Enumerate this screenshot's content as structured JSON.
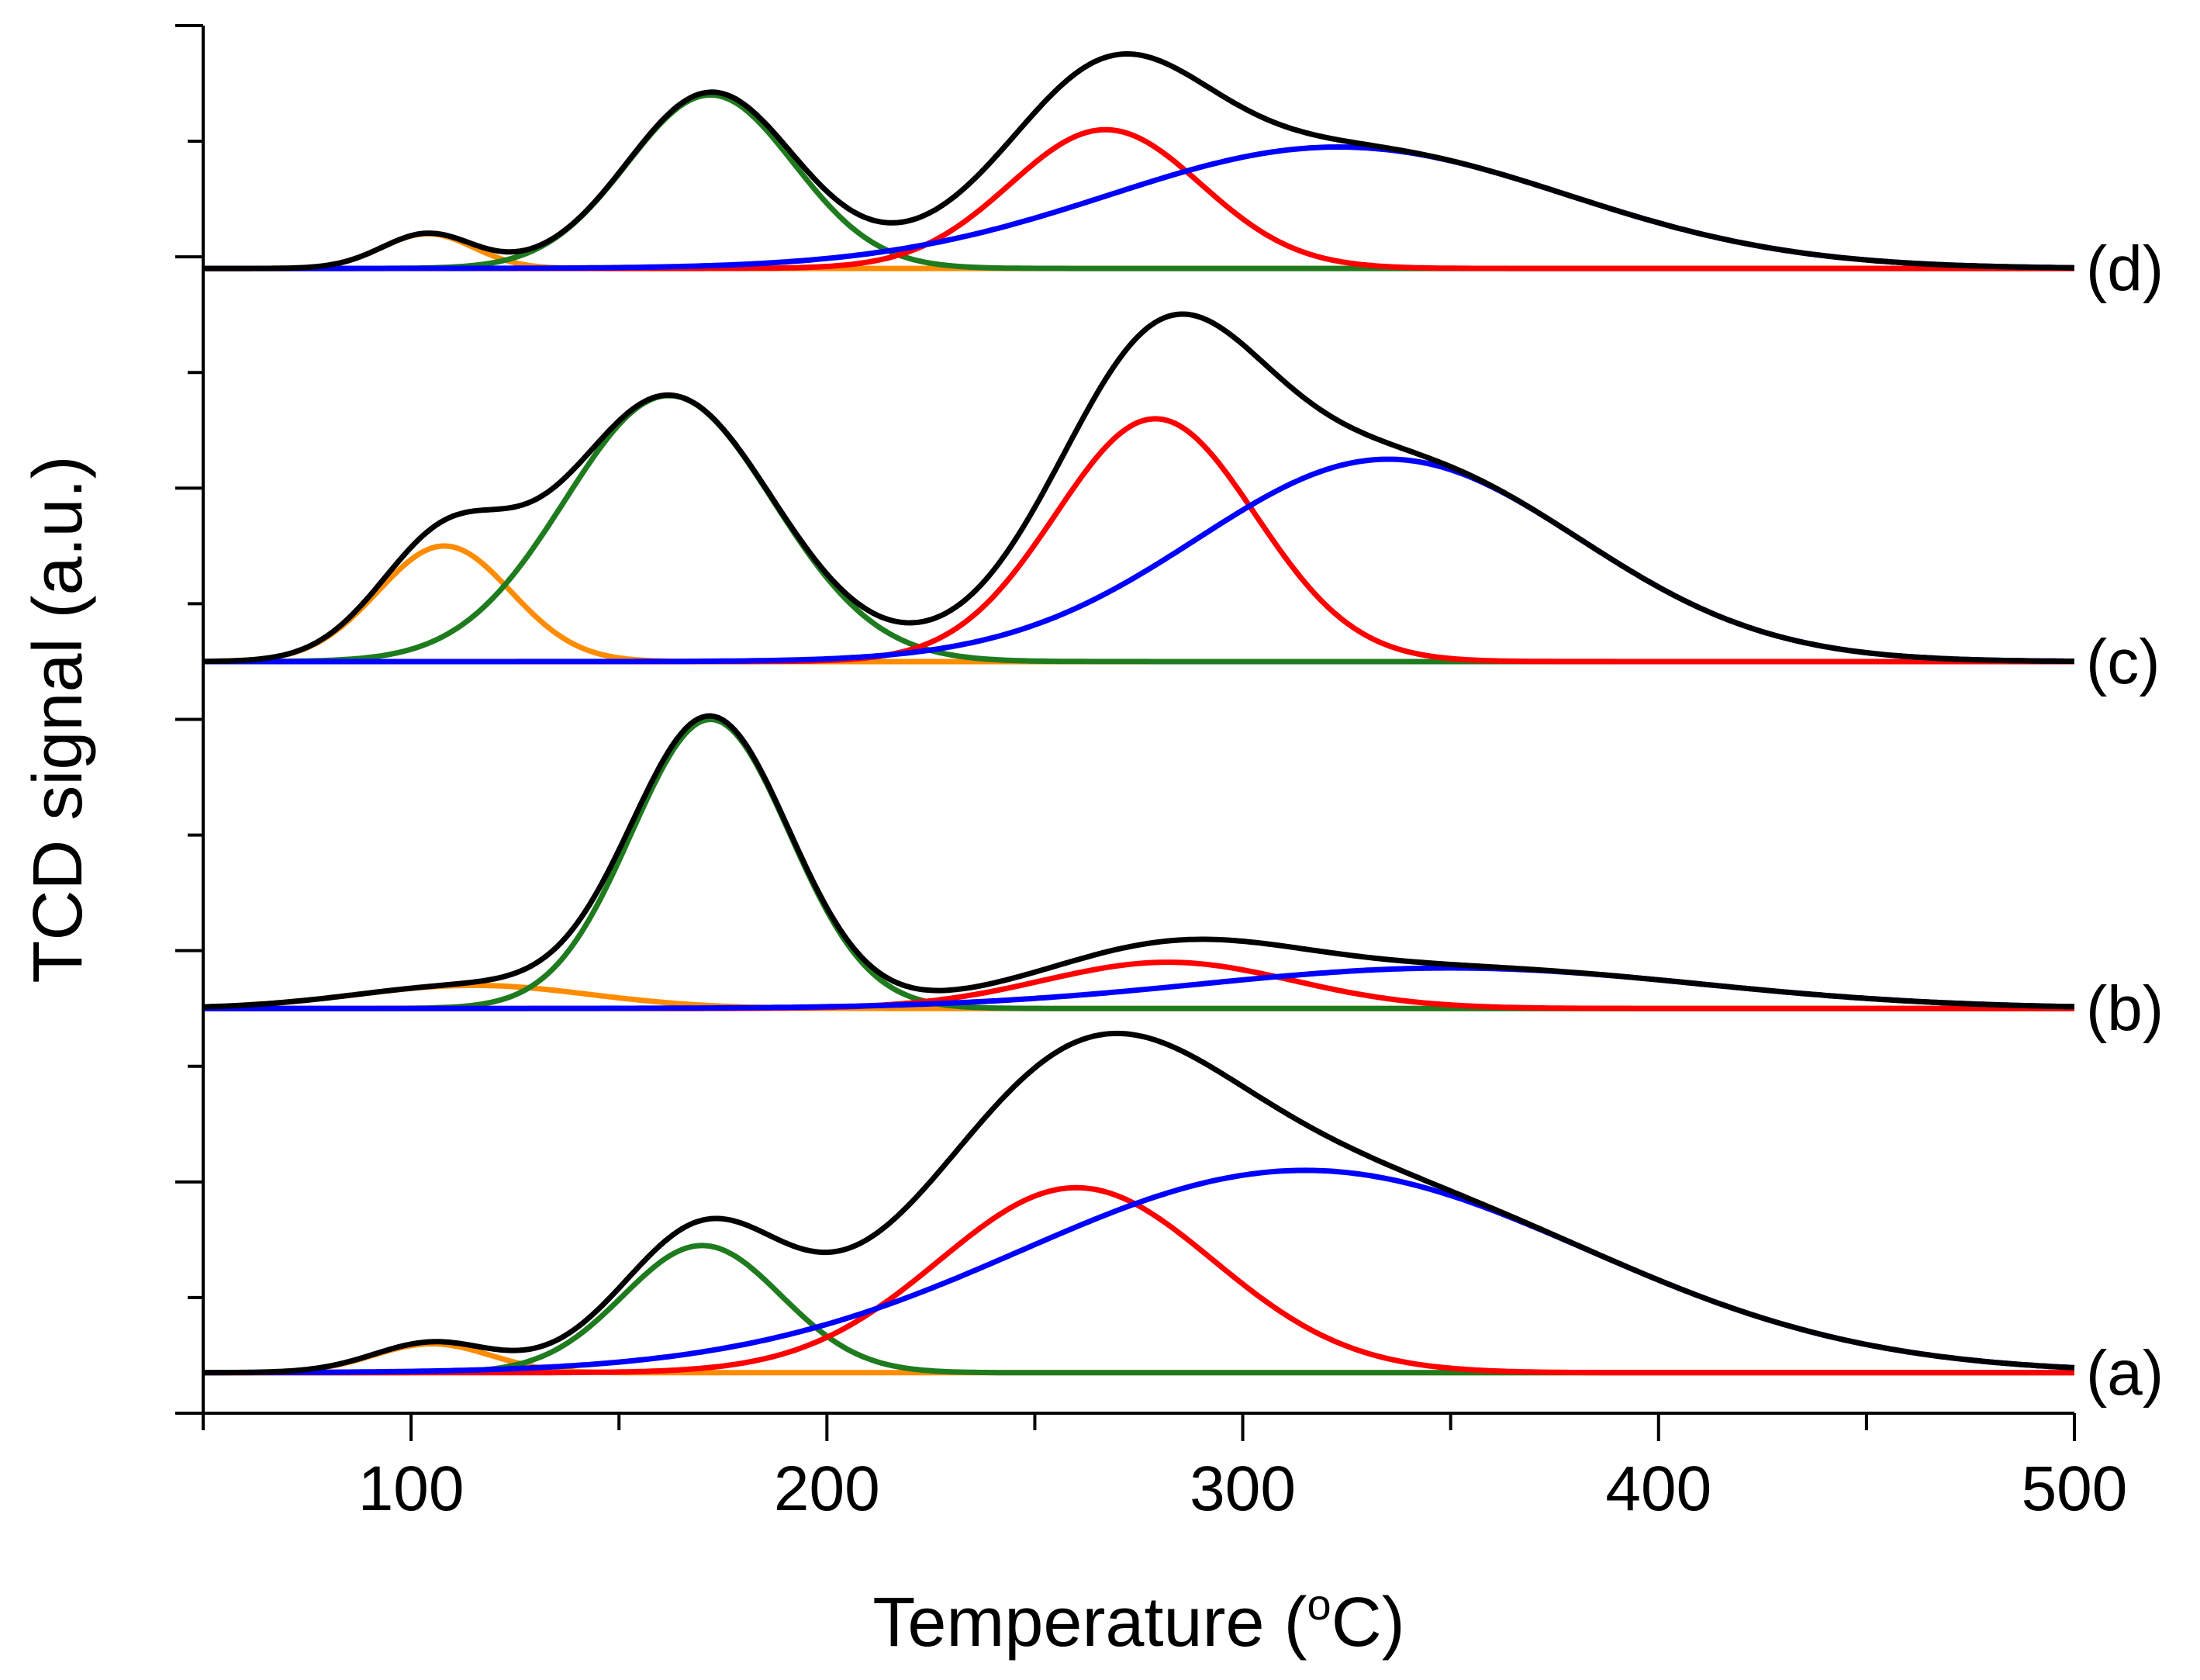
{
  "chart_data": {
    "type": "line",
    "title": "",
    "xlabel": "Temperature (",
    "xlabel_sup": "o",
    "xlabel_unit": "C)",
    "ylabel": "TCD signal (a.u.)",
    "xlim": [
      50,
      500
    ],
    "ylim": [
      0,
      12
    ],
    "xticks": [
      100,
      200,
      300,
      400,
      500
    ],
    "grid": false,
    "legend": "none",
    "colors": {
      "total": "#000000",
      "peak1": "#ff8c00",
      "peak2": "#1e7b1e",
      "peak3": "#ff0000",
      "peak4": "#0000ff"
    },
    "curves": [
      {
        "label": "(a)",
        "baseline": 0.35,
        "components": [
          {
            "name": "peak1",
            "center": 105,
            "height": 0.25,
            "width": 14
          },
          {
            "name": "peak2",
            "center": 170,
            "height": 1.1,
            "width": 19
          },
          {
            "name": "peak3",
            "center": 260,
            "height": 1.6,
            "width": 33
          },
          {
            "name": "peak4",
            "center": 315,
            "height": 1.75,
            "width": 68
          }
        ],
        "total_peaks": [
          {
            "x": 170,
            "y": 1.7
          },
          {
            "x": 265,
            "y": 2.8
          },
          {
            "x": 320,
            "y": 2.2
          }
        ]
      },
      {
        "label": "(b)",
        "baseline": 3.5,
        "components": [
          {
            "name": "peak1",
            "center": 115,
            "height": 0.2,
            "width": 28
          },
          {
            "name": "peak2",
            "center": 172,
            "height": 2.5,
            "width": 19
          },
          {
            "name": "peak3",
            "center": 282,
            "height": 0.4,
            "width": 30
          },
          {
            "name": "peak4",
            "center": 350,
            "height": 0.35,
            "width": 60
          }
        ],
        "total_peaks": [
          {
            "x": 173,
            "y": 6.05
          },
          {
            "x": 280,
            "y": 4.2
          }
        ]
      },
      {
        "label": "(c)",
        "baseline": 6.5,
        "components": [
          {
            "name": "peak1",
            "center": 108,
            "height": 1.0,
            "width": 16
          },
          {
            "name": "peak2",
            "center": 162,
            "height": 2.3,
            "width": 25
          },
          {
            "name": "peak3",
            "center": 279,
            "height": 2.1,
            "width": 24
          },
          {
            "name": "peak4",
            "center": 335,
            "height": 1.75,
            "width": 46
          }
        ],
        "total_peaks": [
          {
            "x": 160,
            "y": 8.85
          },
          {
            "x": 278,
            "y": 9.8
          }
        ]
      },
      {
        "label": "(d)",
        "baseline": 9.9,
        "components": [
          {
            "name": "peak1",
            "center": 104,
            "height": 0.3,
            "width": 11
          },
          {
            "name": "peak2",
            "center": 172,
            "height": 1.5,
            "width": 20
          },
          {
            "name": "peak3",
            "center": 267,
            "height": 1.2,
            "width": 23
          },
          {
            "name": "peak4",
            "center": 323,
            "height": 1.05,
            "width": 55
          }
        ],
        "total_peaks": [
          {
            "x": 172,
            "y": 11.6
          },
          {
            "x": 267,
            "y": 11.7
          }
        ]
      }
    ]
  }
}
